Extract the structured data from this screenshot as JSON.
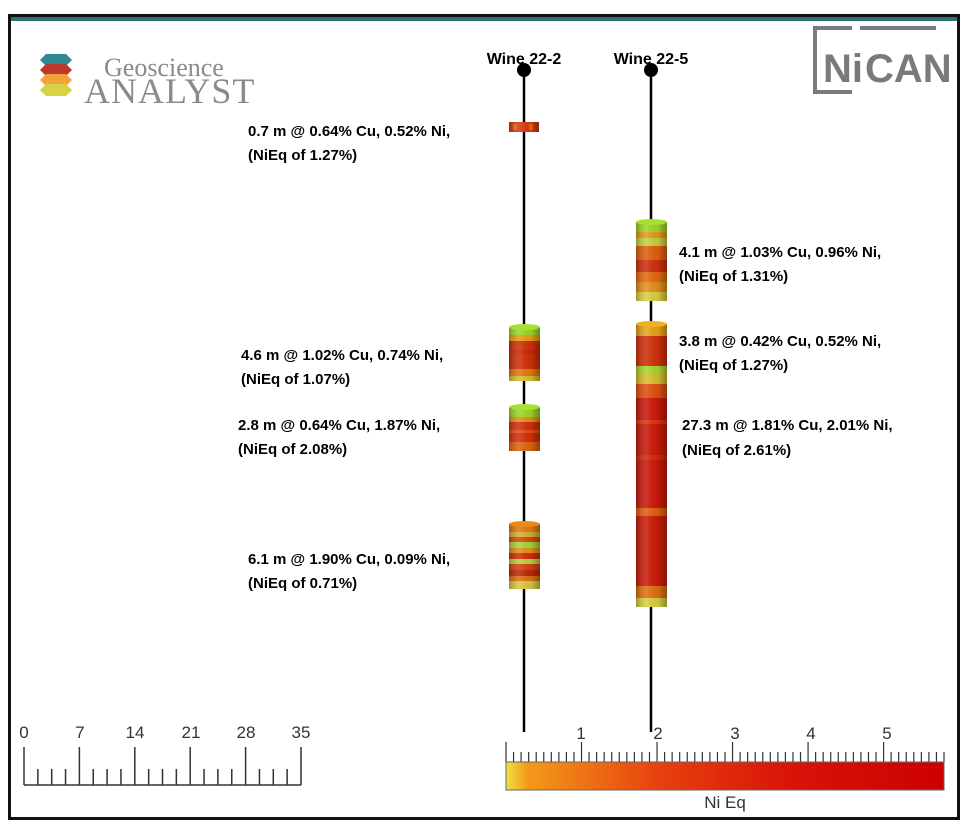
{
  "logo_left": {
    "line1": "Geoscience",
    "line2": "ANALYST",
    "colors": [
      "#2f8a96",
      "#c0392b",
      "#f2a33a",
      "#d9d245"
    ]
  },
  "logo_right": {
    "text_ni": "Ni",
    "text_can": "CAN",
    "color": "#7a7a7a"
  },
  "holes": [
    {
      "name": "Wine 22-2"
    },
    {
      "name": "Wine 22-5"
    }
  ],
  "annotations": [
    {
      "line1": "0.7 m @ 0.64% Cu, 0.52% Ni,",
      "line2": "(NiEq of 1.27%)"
    },
    {
      "line1": "4.6 m @ 1.02% Cu, 0.74% Ni,",
      "line2": "(NiEq of 1.07%)"
    },
    {
      "line1": "2.8 m @ 0.64% Cu, 1.87% Ni,",
      "line2": "(NiEq of 2.08%)"
    },
    {
      "line1": "6.1 m @ 1.90% Cu, 0.09% Ni,",
      "line2": "(NiEq of 0.71%)"
    },
    {
      "line1": "4.1 m @ 1.03% Cu, 0.96% Ni,",
      "line2": "(NiEq of 1.31%)"
    },
    {
      "line1": "3.8 m @ 0.42% Cu, 0.52% Ni,",
      "line2": "(NiEq of 1.27%)"
    },
    {
      "line1": "27.3 m @ 1.81% Cu, 2.01% Ni,",
      "line2": "(NiEq of 2.61%)"
    }
  ],
  "scale_bar": {
    "labels": [
      "0",
      "7",
      "14",
      "21",
      "28",
      "35"
    ]
  },
  "color_ramp": {
    "title": "Ni Eq",
    "labels": [
      "1",
      "2",
      "3",
      "4",
      "5"
    ],
    "colors": [
      "#f0e040",
      "#f07a10",
      "#e02a10",
      "#cc0000"
    ]
  }
}
